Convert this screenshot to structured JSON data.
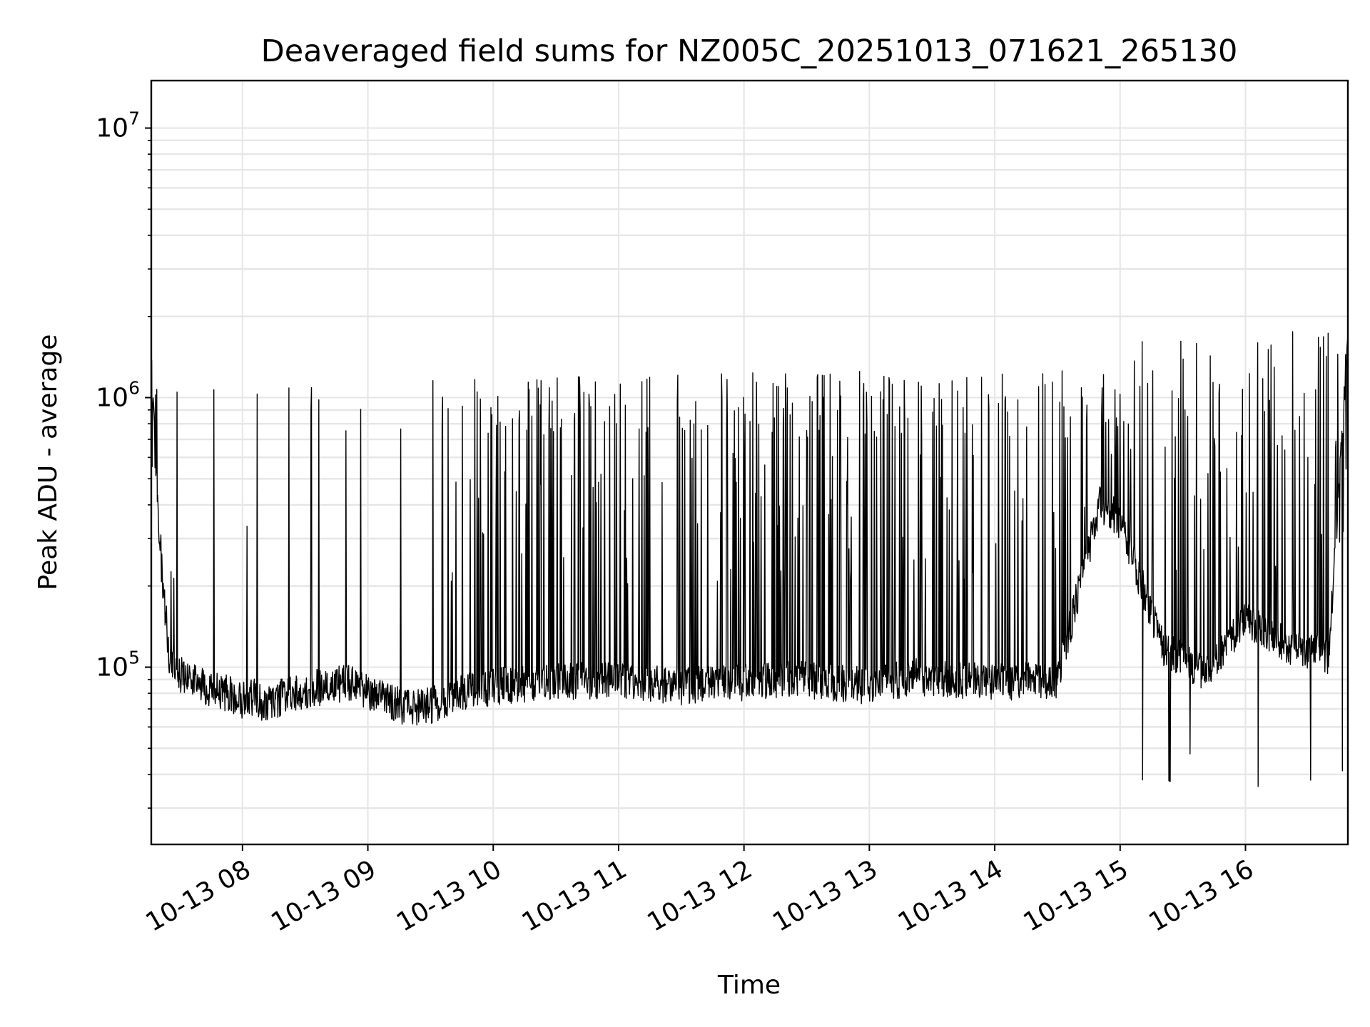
{
  "chart_data": {
    "type": "line",
    "title": "Deaveraged field sums for NZ005C_20251013_071621_265130",
    "xlabel": "Time",
    "ylabel": "Peak ADU - average",
    "yscale": "log",
    "ylim": [
      22000,
      15000000
    ],
    "xlim": [
      "2025-10-13 07:16:21",
      "2025-10-13 16:49:00"
    ],
    "grid": true,
    "line_color": "#000000",
    "x_ticks": [
      {
        "value": "2025-10-13 08:00",
        "label": "10-13 08"
      },
      {
        "value": "2025-10-13 09:00",
        "label": "10-13 09"
      },
      {
        "value": "2025-10-13 10:00",
        "label": "10-13 10"
      },
      {
        "value": "2025-10-13 11:00",
        "label": "10-13 11"
      },
      {
        "value": "2025-10-13 12:00",
        "label": "10-13 12"
      },
      {
        "value": "2025-10-13 13:00",
        "label": "10-13 13"
      },
      {
        "value": "2025-10-13 14:00",
        "label": "10-13 14"
      },
      {
        "value": "2025-10-13 15:00",
        "label": "10-13 15"
      },
      {
        "value": "2025-10-13 16:00",
        "label": "10-13 16"
      }
    ],
    "y_ticks": [
      {
        "value": 100000,
        "base": "10",
        "exp": "5"
      },
      {
        "value": 1000000,
        "base": "10",
        "exp": "6"
      },
      {
        "value": 10000000,
        "base": "10",
        "exp": "7"
      }
    ],
    "series": [
      {
        "x": [
          "2025-10-13 07:16",
          "2025-10-13 07:20",
          "2025-10-13 07:25",
          "2025-10-13 07:30",
          "2025-10-13 07:40",
          "2025-10-13 07:50",
          "2025-10-13 08:00",
          "2025-10-13 08:05",
          "2025-10-13 08:10",
          "2025-10-13 08:20",
          "2025-10-13 08:30",
          "2025-10-13 08:40",
          "2025-10-13 08:50",
          "2025-10-13 09:00",
          "2025-10-13 09:10",
          "2025-10-13 09:20",
          "2025-10-13 09:30",
          "2025-10-13 09:40",
          "2025-10-13 09:50",
          "2025-10-13 10:00",
          "2025-10-13 10:30",
          "2025-10-13 11:00",
          "2025-10-13 11:30",
          "2025-10-13 12:00",
          "2025-10-13 12:30",
          "2025-10-13 13:00",
          "2025-10-13 13:20",
          "2025-10-13 13:40",
          "2025-10-13 14:00",
          "2025-10-13 14:30",
          "2025-10-13 14:50",
          "2025-10-13 15:00",
          "2025-10-13 15:20",
          "2025-10-13 15:40",
          "2025-10-13 16:00",
          "2025-10-13 16:20",
          "2025-10-13 16:40",
          "2025-10-13 16:49"
        ],
        "y": [
          1500000,
          300000,
          110000,
          95000,
          85000,
          82000,
          75000,
          78000,
          72000,
          78000,
          82000,
          85000,
          88000,
          80000,
          75000,
          70000,
          72000,
          78000,
          82000,
          85000,
          88000,
          90000,
          85000,
          88000,
          90000,
          85000,
          92000,
          90000,
          88000,
          90000,
          400000,
          350000,
          120000,
          95000,
          150000,
          120000,
          110000,
          1800000
        ]
      }
    ]
  }
}
